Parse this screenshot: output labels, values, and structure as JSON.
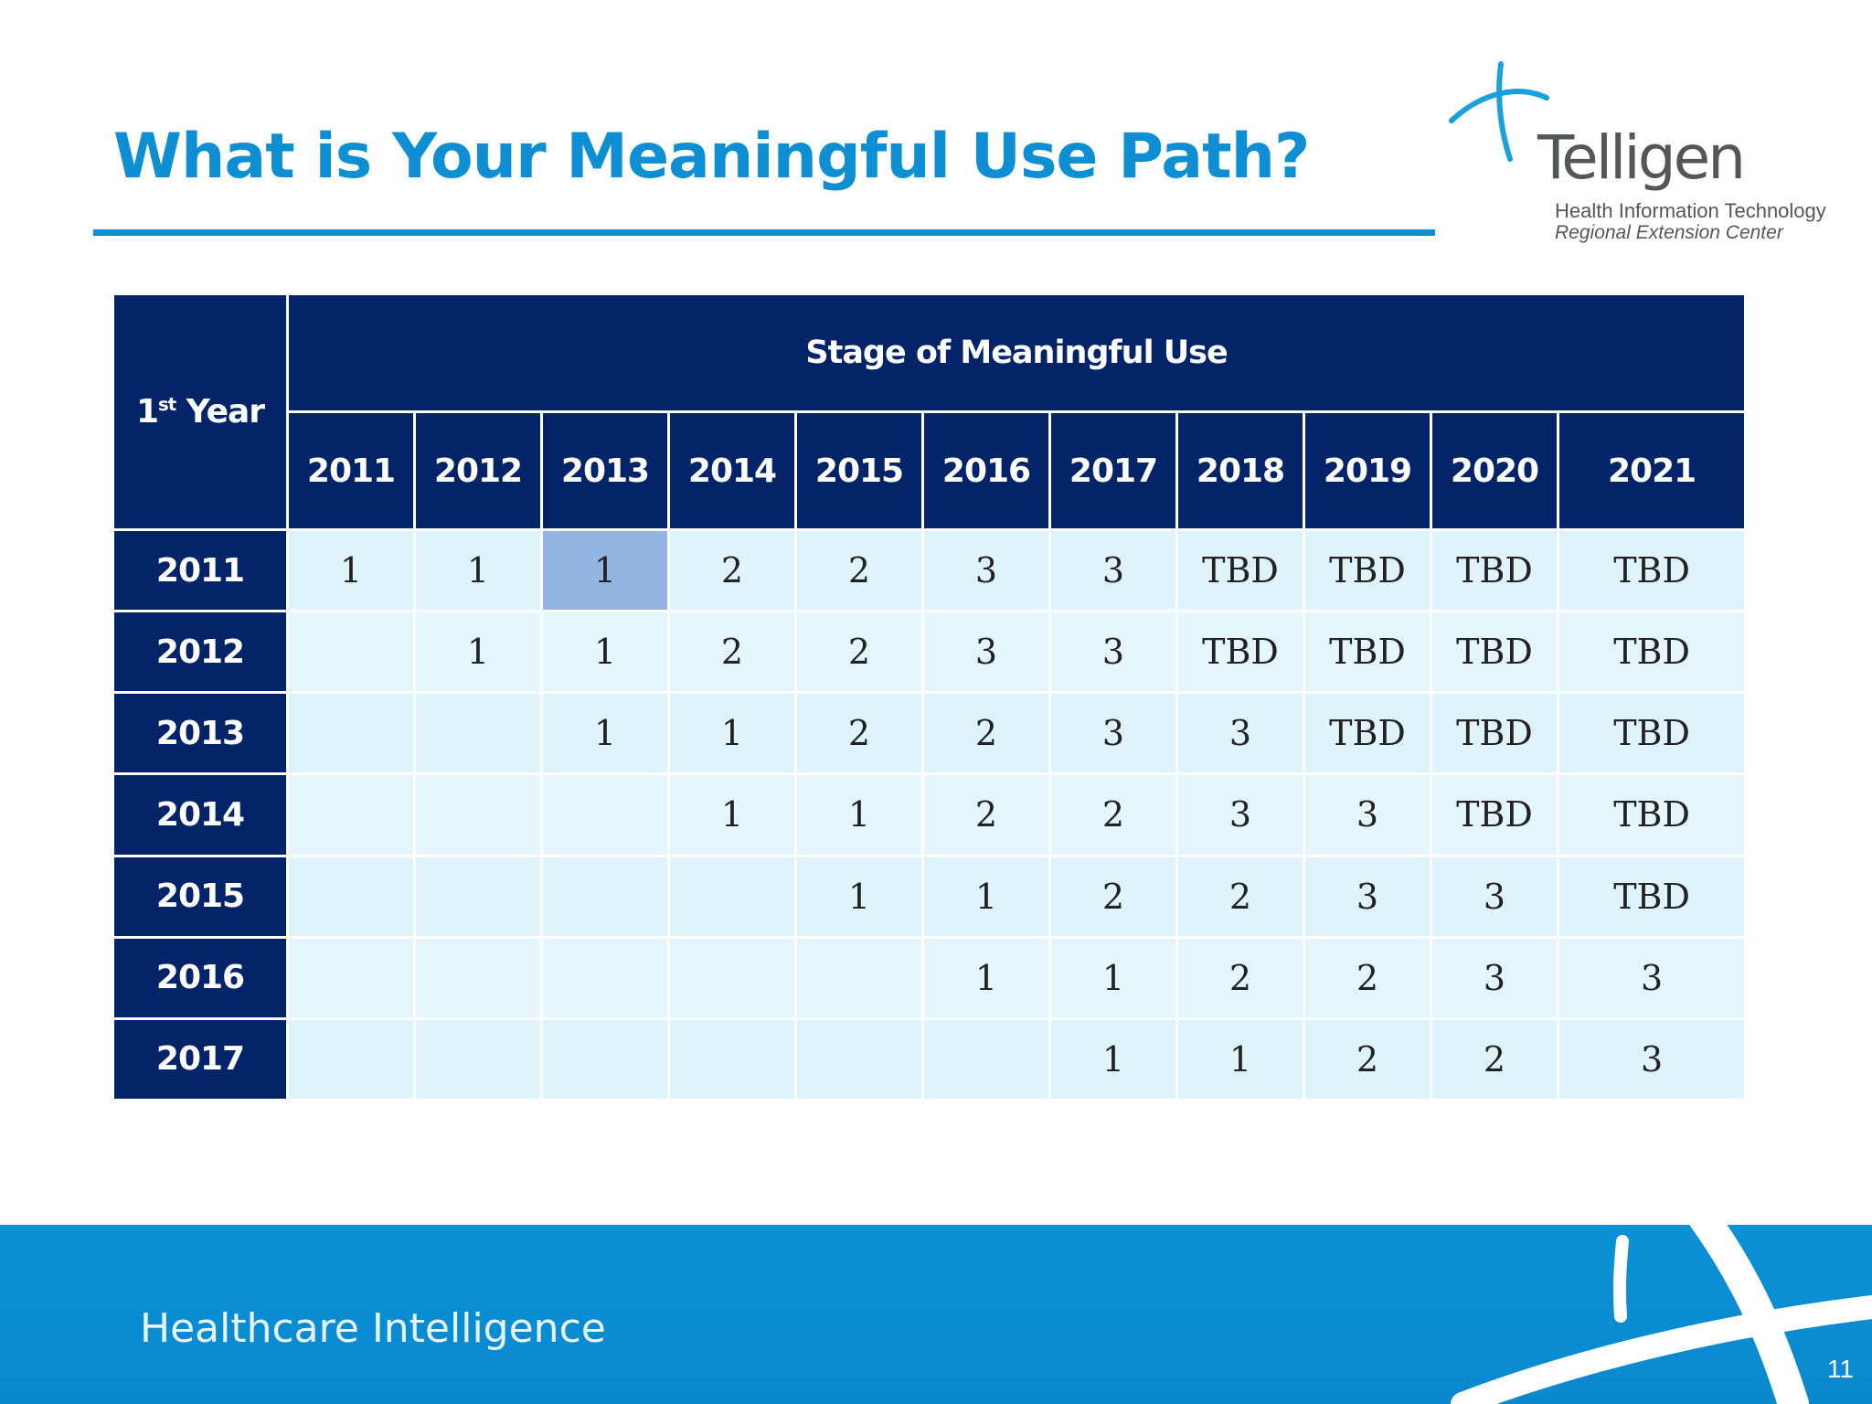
{
  "slide": {
    "title": "What is Your Meaningful Use Path?",
    "page_number": "11"
  },
  "logo": {
    "name": "Telligen",
    "tagline_1": "Health Information Technology",
    "tagline_2": "Regional Extension Center"
  },
  "footer": {
    "tagline": "Healthcare Intelligence"
  },
  "colors": {
    "title_blue": "#0f8fd3",
    "header_navy": "#04246a",
    "cell_light": "#dff3fb",
    "cell_highlight": "#93b5e4",
    "footer_blue": "#0b91d6"
  },
  "table": {
    "first_year_label": "1",
    "first_year_sup": "st",
    "first_year_suffix": " Year",
    "stage_label": "Stage of Meaningful Use",
    "years": [
      "2011",
      "2012",
      "2013",
      "2014",
      "2015",
      "2016",
      "2017",
      "2018",
      "2019",
      "2020",
      "2021"
    ],
    "highlight": {
      "row": 0,
      "col": 2
    },
    "rows": [
      {
        "year": "2011",
        "cells": [
          "1",
          "1",
          "1",
          "2",
          "2",
          "3",
          "3",
          "TBD",
          "TBD",
          "TBD",
          "TBD"
        ]
      },
      {
        "year": "2012",
        "cells": [
          "",
          "1",
          "1",
          "2",
          "2",
          "3",
          "3",
          "TBD",
          "TBD",
          "TBD",
          "TBD"
        ]
      },
      {
        "year": "2013",
        "cells": [
          "",
          "",
          "1",
          "1",
          "2",
          "2",
          "3",
          "3",
          "TBD",
          "TBD",
          "TBD"
        ]
      },
      {
        "year": "2014",
        "cells": [
          "",
          "",
          "",
          "1",
          "1",
          "2",
          "2",
          "3",
          "3",
          "TBD",
          "TBD"
        ]
      },
      {
        "year": "2015",
        "cells": [
          "",
          "",
          "",
          "",
          "1",
          "1",
          "2",
          "2",
          "3",
          "3",
          "TBD"
        ]
      },
      {
        "year": "2016",
        "cells": [
          "",
          "",
          "",
          "",
          "",
          "1",
          "1",
          "2",
          "2",
          "3",
          "3"
        ]
      },
      {
        "year": "2017",
        "cells": [
          "",
          "",
          "",
          "",
          "",
          "",
          "1",
          "1",
          "2",
          "2",
          "3"
        ]
      }
    ]
  }
}
